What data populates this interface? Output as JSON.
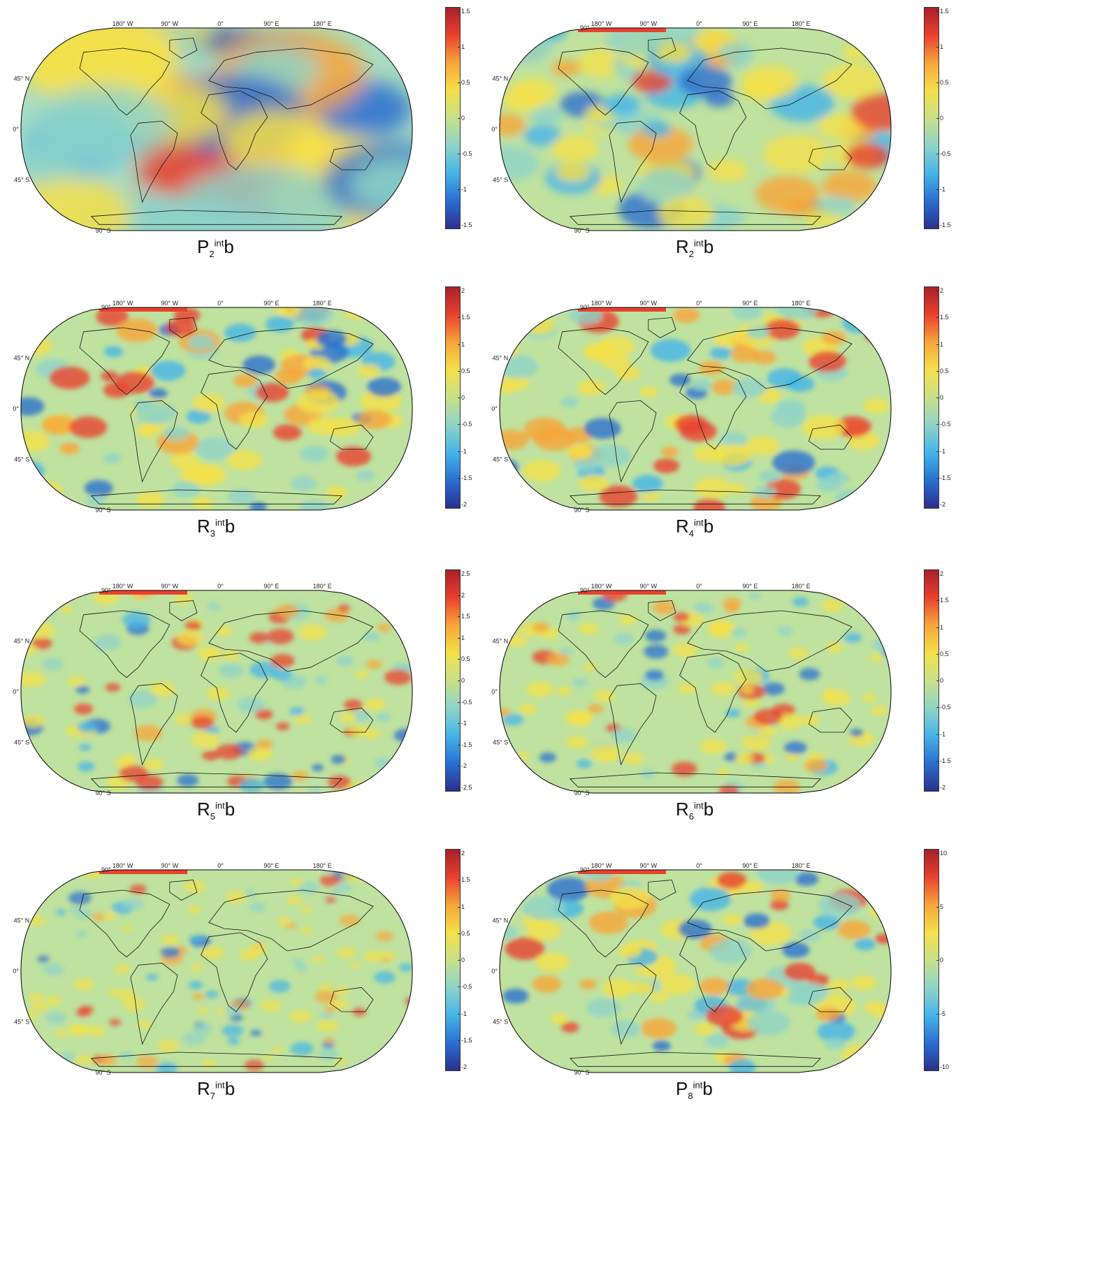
{
  "colormap": [
    "#2b2f8f",
    "#2a6fd0",
    "#45b4e8",
    "#8fd3c8",
    "#c8e08a",
    "#f4e04a",
    "#f7a53a",
    "#e8412e",
    "#a8202a"
  ],
  "panels": [
    {
      "id": "P2",
      "base": "P",
      "sub": "2",
      "sup": "int",
      "suffix": "b",
      "lon_labels": [
        "180° W",
        "90° W",
        "0°",
        "90° E",
        "180° E"
      ],
      "lat_labels": [
        "45° N",
        "0°",
        "45° S",
        "90° S"
      ],
      "colorbar_ticks": [
        "1.5",
        "1",
        "0.5",
        "0",
        "-0.5",
        "-1",
        "-1.5"
      ],
      "pattern": "smooth"
    },
    {
      "id": "R2",
      "base": "R",
      "sub": "2",
      "sup": "int",
      "suffix": "b",
      "lon_labels": [
        "180° W",
        "90° W",
        "0°",
        "90° E",
        "180° E"
      ],
      "lat_labels": [
        "90°",
        "45° N",
        "0°",
        "45° S",
        "90° S"
      ],
      "colorbar_ticks": [
        "1.5",
        "1",
        "0.5",
        "0",
        "-0.5",
        "-1",
        "-1.5"
      ],
      "pattern": "medium"
    },
    {
      "id": "R3",
      "base": "R",
      "sub": "3",
      "sup": "int",
      "suffix": "b",
      "lon_labels": [
        "180° W",
        "90° W",
        "0°",
        "90° E",
        "180° E"
      ],
      "lat_labels": [
        "90°",
        "45° N",
        "0°",
        "45° S",
        "90° S"
      ],
      "colorbar_ticks": [
        "2",
        "1.5",
        "1",
        "0.5",
        "0",
        "-0.5",
        "-1",
        "-1.5",
        "-2"
      ],
      "pattern": "fine"
    },
    {
      "id": "R4",
      "base": "R",
      "sub": "4",
      "sup": "int",
      "suffix": "b",
      "lon_labels": [
        "180° W",
        "90° W",
        "0°",
        "90° E",
        "180° E"
      ],
      "lat_labels": [
        "90°",
        "45° N",
        "0°",
        "45° S",
        "90° S"
      ],
      "colorbar_ticks": [
        "2",
        "1.5",
        "1",
        "0.5",
        "0",
        "-0.5",
        "-1",
        "-1.5",
        "-2"
      ],
      "pattern": "fine"
    },
    {
      "id": "R5",
      "base": "R",
      "sub": "5",
      "sup": "int",
      "suffix": "b",
      "lon_labels": [
        "180° W",
        "90° W",
        "0°",
        "90° E",
        "180° E"
      ],
      "lat_labels": [
        "90°",
        "45° N",
        "0°",
        "45° S",
        "90° S"
      ],
      "colorbar_ticks": [
        "2.5",
        "2",
        "1.5",
        "1",
        "0.5",
        "0",
        "-0.5",
        "-1",
        "-1.5",
        "-2",
        "-2.5"
      ],
      "pattern": "finer"
    },
    {
      "id": "R6",
      "base": "R",
      "sub": "6",
      "sup": "int",
      "suffix": "b",
      "lon_labels": [
        "180° W",
        "90° W",
        "0°",
        "90° E",
        "180° E"
      ],
      "lat_labels": [
        "90°",
        "45° N",
        "0°",
        "45° S",
        "90° S"
      ],
      "colorbar_ticks": [
        "2",
        "1.5",
        "1",
        "0.5",
        "0",
        "-0.5",
        "-1",
        "-1.5",
        "-2"
      ],
      "pattern": "finer"
    },
    {
      "id": "R7",
      "base": "R",
      "sub": "7",
      "sup": "int",
      "suffix": "b",
      "lon_labels": [
        "180° W",
        "90° W",
        "0°",
        "90° E",
        "180° E"
      ],
      "lat_labels": [
        "90°",
        "45° N",
        "0°",
        "45° S",
        "90° S"
      ],
      "colorbar_ticks": [
        "2",
        "1.5",
        "1",
        "0.5",
        "0",
        "-0.5",
        "-1",
        "-1.5",
        "-2"
      ],
      "pattern": "finest"
    },
    {
      "id": "P8",
      "base": "P",
      "sub": "8",
      "sup": "int",
      "suffix": "b",
      "lon_labels": [
        "180° W",
        "90° W",
        "0°",
        "90° E",
        "180° E"
      ],
      "lat_labels": [
        "90°",
        "45° N",
        "0°",
        "45° S",
        "90° S"
      ],
      "colorbar_ticks": [
        "10",
        "5",
        "0",
        "-5",
        "-10"
      ],
      "pattern": "fine"
    }
  ]
}
